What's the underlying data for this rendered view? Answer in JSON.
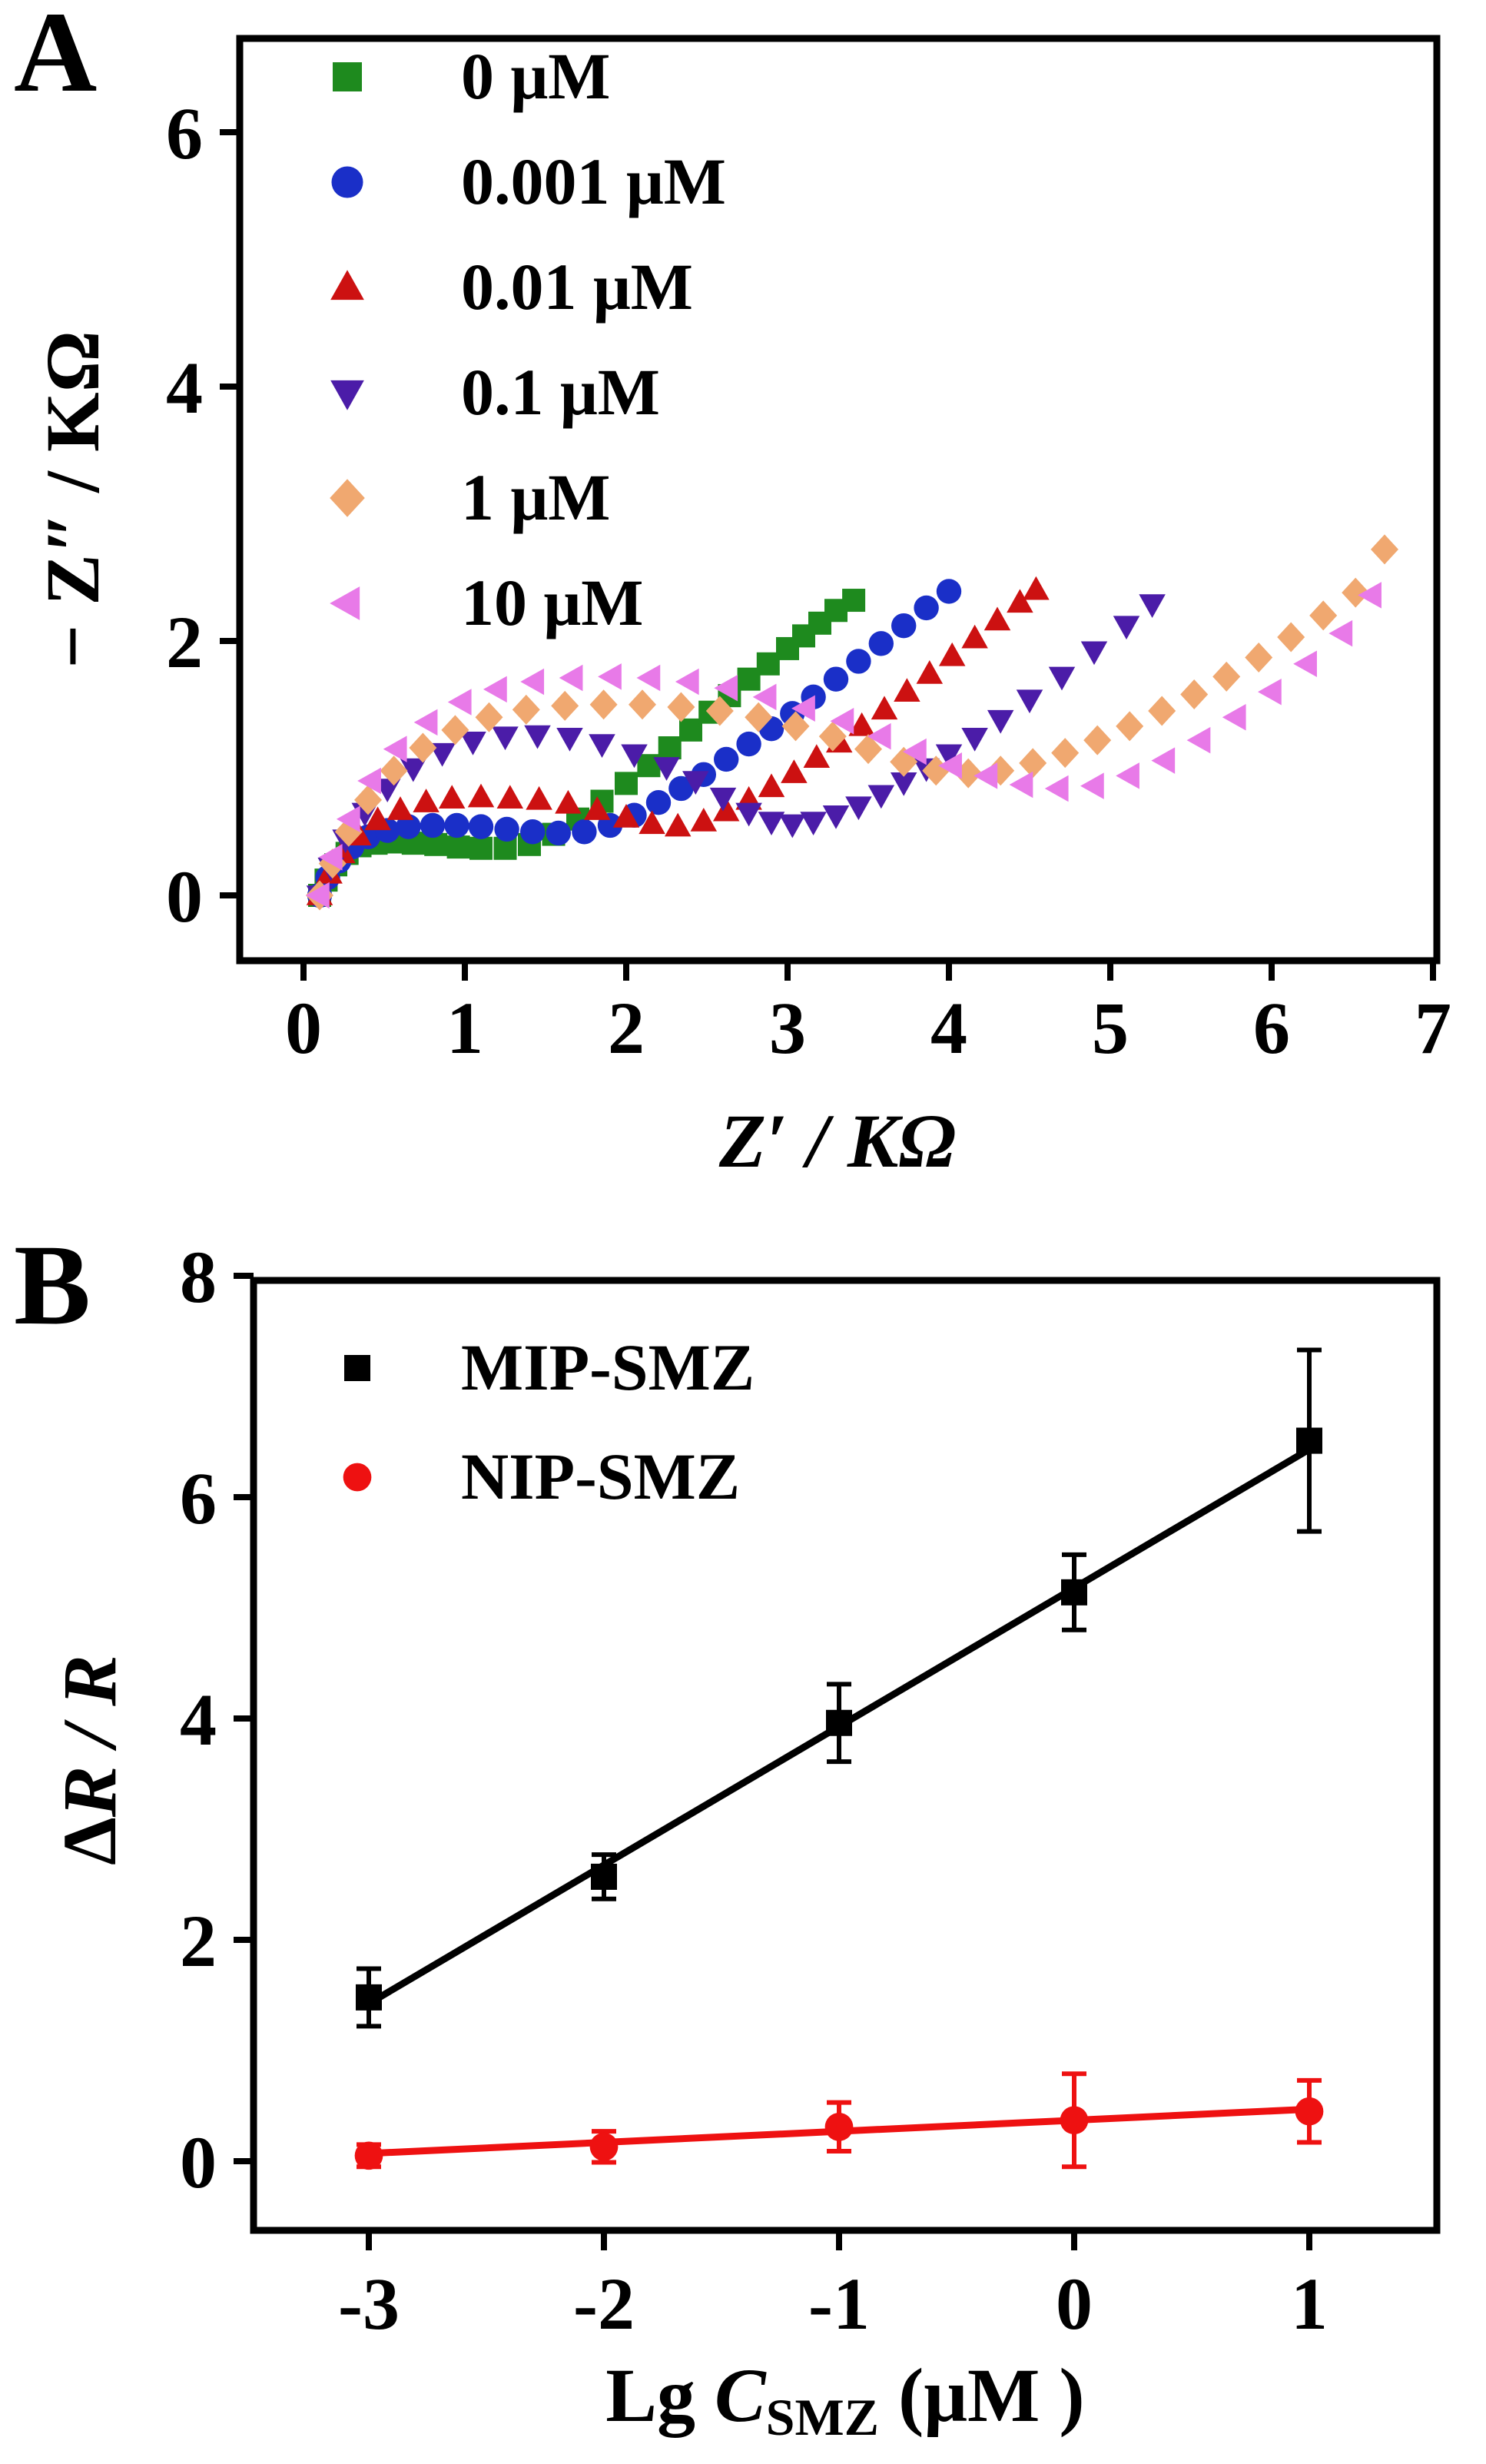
{
  "chart_data": [
    {
      "panel": "A",
      "type": "scatter",
      "xlabel": "Z′ / KΩ",
      "ylabel": "− Z″ / KΩ",
      "xlim": [
        -0.35,
        7
      ],
      "ylim": [
        -0.5,
        6.8
      ],
      "xticks": [
        0,
        1,
        2,
        3,
        4,
        5,
        6,
        7
      ],
      "yticks": [
        0,
        2,
        4,
        6
      ],
      "legend_position": "top-left",
      "series": [
        {
          "name": "0 μM",
          "marker": "square",
          "color": "#1e8a1e",
          "x": [
            0.1,
            0.14,
            0.2,
            0.27,
            0.35,
            0.45,
            0.56,
            0.68,
            0.82,
            0.96,
            1.1,
            1.25,
            1.4,
            1.55,
            1.7,
            1.85,
            2.0,
            2.14,
            2.27,
            2.4,
            2.52,
            2.64,
            2.76,
            2.88,
            3.0,
            3.1,
            3.2,
            3.3,
            3.41
          ],
          "y": [
            0.0,
            0.12,
            0.24,
            0.33,
            0.39,
            0.41,
            0.42,
            0.41,
            0.4,
            0.38,
            0.37,
            0.37,
            0.4,
            0.48,
            0.6,
            0.74,
            0.88,
            1.02,
            1.16,
            1.3,
            1.44,
            1.57,
            1.7,
            1.82,
            1.94,
            2.04,
            2.14,
            2.24,
            2.32
          ]
        },
        {
          "name": "0.001 μM",
          "marker": "circle",
          "color": "#1a2fc8",
          "x": [
            0.1,
            0.15,
            0.22,
            0.3,
            0.4,
            0.52,
            0.65,
            0.8,
            0.95,
            1.1,
            1.26,
            1.42,
            1.58,
            1.74,
            1.9,
            2.05,
            2.2,
            2.34,
            2.48,
            2.62,
            2.76,
            2.9,
            3.03,
            3.16,
            3.3,
            3.44,
            3.58,
            3.72,
            3.86,
            4.0
          ],
          "y": [
            0.0,
            0.14,
            0.27,
            0.38,
            0.46,
            0.51,
            0.54,
            0.55,
            0.55,
            0.54,
            0.52,
            0.5,
            0.49,
            0.5,
            0.55,
            0.63,
            0.73,
            0.84,
            0.95,
            1.07,
            1.19,
            1.31,
            1.43,
            1.56,
            1.7,
            1.84,
            1.98,
            2.12,
            2.26,
            2.39
          ]
        },
        {
          "name": "0.01 μM",
          "marker": "triangle-up",
          "color": "#cc1111",
          "x": [
            0.1,
            0.16,
            0.24,
            0.34,
            0.46,
            0.6,
            0.76,
            0.92,
            1.1,
            1.28,
            1.46,
            1.64,
            1.82,
            2.0,
            2.16,
            2.32,
            2.48,
            2.62,
            2.76,
            2.9,
            3.04,
            3.18,
            3.32,
            3.46,
            3.6,
            3.74,
            3.88,
            4.02,
            4.16,
            4.3,
            4.44,
            4.54
          ],
          "y": [
            0.0,
            0.17,
            0.33,
            0.47,
            0.59,
            0.67,
            0.73,
            0.76,
            0.77,
            0.76,
            0.75,
            0.72,
            0.67,
            0.61,
            0.56,
            0.54,
            0.58,
            0.66,
            0.75,
            0.85,
            0.96,
            1.08,
            1.2,
            1.33,
            1.46,
            1.6,
            1.74,
            1.88,
            2.02,
            2.16,
            2.3,
            2.4
          ]
        },
        {
          "name": "0.1 μM",
          "marker": "triangle-down",
          "color": "#4b1ca8",
          "x": [
            0.1,
            0.17,
            0.26,
            0.38,
            0.52,
            0.68,
            0.86,
            1.05,
            1.25,
            1.45,
            1.65,
            1.85,
            2.05,
            2.25,
            2.43,
            2.6,
            2.76,
            2.9,
            3.03,
            3.16,
            3.3,
            3.44,
            3.58,
            3.72,
            3.86,
            4.0,
            4.16,
            4.32,
            4.5,
            4.7,
            4.9,
            5.1,
            5.26
          ],
          "y": [
            0.0,
            0.22,
            0.44,
            0.65,
            0.84,
            1.0,
            1.12,
            1.21,
            1.25,
            1.26,
            1.24,
            1.19,
            1.11,
            1.01,
            0.9,
            0.77,
            0.65,
            0.58,
            0.56,
            0.58,
            0.63,
            0.7,
            0.79,
            0.89,
            1.0,
            1.11,
            1.24,
            1.38,
            1.54,
            1.72,
            1.92,
            2.12,
            2.29
          ]
        },
        {
          "name": "1 μM",
          "marker": "diamond",
          "color": "#f0a870",
          "x": [
            0.1,
            0.18,
            0.28,
            0.4,
            0.56,
            0.74,
            0.94,
            1.15,
            1.38,
            1.62,
            1.86,
            2.1,
            2.34,
            2.58,
            2.82,
            3.05,
            3.28,
            3.5,
            3.72,
            3.92,
            4.12,
            4.32,
            4.52,
            4.72,
            4.92,
            5.12,
            5.32,
            5.52,
            5.72,
            5.92,
            6.12,
            6.32,
            6.52,
            6.7
          ],
          "y": [
            0.0,
            0.25,
            0.5,
            0.75,
            0.98,
            1.16,
            1.3,
            1.4,
            1.46,
            1.49,
            1.5,
            1.5,
            1.48,
            1.45,
            1.4,
            1.33,
            1.25,
            1.15,
            1.05,
            0.98,
            0.96,
            0.98,
            1.04,
            1.12,
            1.22,
            1.33,
            1.45,
            1.58,
            1.72,
            1.87,
            2.03,
            2.2,
            2.38,
            2.72
          ]
        },
        {
          "name": "10 μM",
          "marker": "triangle-left",
          "color": "#e87ae8",
          "x": [
            0.1,
            0.18,
            0.29,
            0.42,
            0.58,
            0.77,
            0.98,
            1.2,
            1.43,
            1.67,
            1.91,
            2.15,
            2.39,
            2.63,
            2.87,
            3.11,
            3.35,
            3.58,
            3.8,
            4.02,
            4.24,
            4.46,
            4.68,
            4.9,
            5.12,
            5.34,
            5.56,
            5.78,
            6.0,
            6.22,
            6.44,
            6.62
          ],
          "y": [
            0.0,
            0.3,
            0.6,
            0.9,
            1.15,
            1.36,
            1.52,
            1.62,
            1.68,
            1.71,
            1.72,
            1.71,
            1.68,
            1.63,
            1.56,
            1.47,
            1.37,
            1.25,
            1.13,
            1.02,
            0.94,
            0.87,
            0.84,
            0.86,
            0.94,
            1.06,
            1.22,
            1.4,
            1.6,
            1.82,
            2.06,
            2.36
          ]
        }
      ]
    },
    {
      "panel": "B",
      "type": "scatter",
      "xlabel_main": "Lg ",
      "xlabel_var": "C",
      "xlabel_sub": "SMZ",
      "xlabel_unit": "  (μM )",
      "ylabel_delta": "Δ",
      "ylabel_var": "R / R",
      "xlim": [
        -3.5,
        1.5
      ],
      "ylim": [
        -0.5,
        8
      ],
      "xticks": [
        -3,
        -2,
        -1,
        0,
        1
      ],
      "yticks": [
        0,
        2,
        4,
        6,
        8
      ],
      "legend_position": "top-left",
      "series": [
        {
          "name": "MIP-SMZ",
          "marker": "square",
          "color": "#000000",
          "x": [
            -3,
            -2,
            -1,
            0,
            1
          ],
          "y": [
            1.48,
            2.57,
            3.96,
            5.14,
            6.51
          ],
          "err": [
            0.26,
            0.2,
            0.35,
            0.34,
            0.82
          ],
          "fit": {
            "slope": 1.252,
            "intercept": 5.18
          }
        },
        {
          "name": "NIP-SMZ",
          "marker": "circle",
          "color": "#ee1111",
          "x": [
            -3,
            -2,
            -1,
            0,
            1
          ],
          "y": [
            0.05,
            0.13,
            0.31,
            0.37,
            0.45
          ],
          "err": [
            0.1,
            0.14,
            0.22,
            0.42,
            0.28
          ],
          "fit": {
            "slope": 0.1,
            "intercept": 0.37
          }
        }
      ]
    }
  ]
}
